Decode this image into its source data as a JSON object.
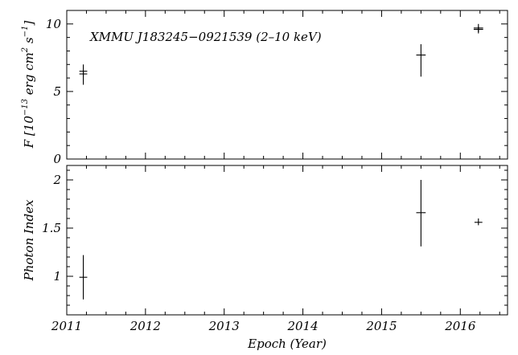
{
  "chart_data": [
    {
      "type": "scatter",
      "title": "",
      "annotation": "XMMU J183245−0921539 (2–10 keV)",
      "xlabel": "",
      "ylabel_parts": {
        "pre": "F [10",
        "exp1": "−13",
        "mid": " erg cm",
        "exp2": "2",
        "mid2": " s",
        "exp3": "−1",
        "post": "]"
      },
      "xlim": [
        2011.0,
        2016.6
      ],
      "ylim": [
        0,
        11
      ],
      "y_ticks_major": [
        0,
        5,
        10
      ],
      "y_tick_labels": [
        "0",
        "5",
        "10"
      ],
      "y_ticks_minor": [
        1,
        2,
        3,
        4,
        6,
        7,
        8,
        9,
        11
      ],
      "points": [
        {
          "x": 2011.21,
          "y": 6.5,
          "y_lo": 5.5,
          "y_hi": 7.0,
          "x_err": 0.05
        },
        {
          "x": 2011.21,
          "y": 6.3,
          "y_lo": 6.1,
          "y_hi": 6.5,
          "x_err": 0.05
        },
        {
          "x": 2015.5,
          "y": 7.7,
          "y_lo": 6.1,
          "y_hi": 8.5,
          "x_err": 0.06
        },
        {
          "x": 2016.23,
          "y": 9.7,
          "y_lo": 9.3,
          "y_hi": 10.0,
          "x_err": 0.06
        },
        {
          "x": 2016.23,
          "y": 9.6,
          "y_lo": 9.4,
          "y_hi": 9.8,
          "x_err": 0.06
        }
      ]
    },
    {
      "type": "scatter",
      "title": "",
      "xlabel": "Epoch (Year)",
      "ylabel": "Photon Index",
      "xlim": [
        2011.0,
        2016.6
      ],
      "ylim": [
        0.6,
        2.15
      ],
      "y_ticks_major": [
        1,
        1.5,
        2
      ],
      "y_tick_labels": [
        "1",
        "1.5",
        "2"
      ],
      "y_ticks_minor": [
        0.7,
        0.8,
        0.9,
        1.1,
        1.2,
        1.3,
        1.4,
        1.6,
        1.7,
        1.8,
        1.9,
        2.1
      ],
      "x_ticks_major": [
        2011,
        2012,
        2013,
        2014,
        2015,
        2016
      ],
      "x_tick_labels": [
        "2011",
        "2012",
        "2013",
        "2014",
        "2015",
        "2016"
      ],
      "points": [
        {
          "x": 2011.21,
          "y": 0.99,
          "y_lo": 0.76,
          "y_hi": 1.22,
          "x_err": 0.05
        },
        {
          "x": 2015.5,
          "y": 1.66,
          "y_lo": 1.31,
          "y_hi": 2.0,
          "x_err": 0.06
        },
        {
          "x": 2016.23,
          "y": 1.56,
          "y_lo": 1.53,
          "y_hi": 1.6,
          "x_err": 0.05
        }
      ]
    }
  ]
}
